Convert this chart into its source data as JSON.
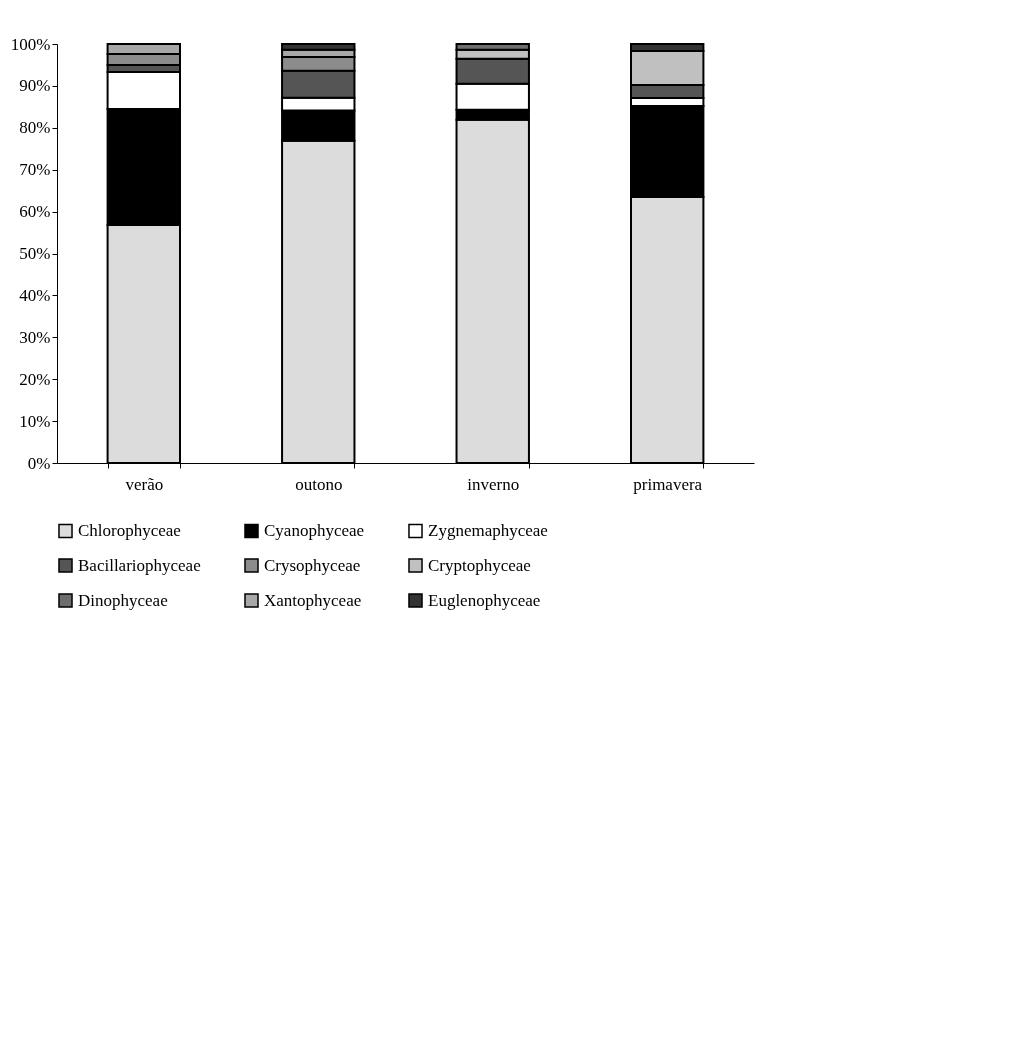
{
  "chart_data": {
    "type": "bar",
    "stacked": true,
    "legend": "bottom",
    "categories": [
      "verão",
      "outono",
      "inverno",
      "primavera"
    ],
    "ylim": [
      0,
      100
    ],
    "yticks": [
      {
        "value": 0,
        "label": "0%"
      },
      {
        "value": 10,
        "label": "10%"
      },
      {
        "value": 20,
        "label": "20%"
      },
      {
        "value": 30,
        "label": "30%"
      },
      {
        "value": 40,
        "label": "40%"
      },
      {
        "value": 50,
        "label": "50%"
      },
      {
        "value": 60,
        "label": "60%"
      },
      {
        "value": 70,
        "label": "70%"
      },
      {
        "value": 80,
        "label": "80%"
      },
      {
        "value": 90,
        "label": "90%"
      },
      {
        "value": 100,
        "label": "100%"
      }
    ],
    "series": [
      {
        "name": "Chlorophyceae",
        "color": "#dcdcdc",
        "values": [
          56.8,
          76.9,
          81.9,
          63.5
        ]
      },
      {
        "name": "Cyanophyceae",
        "color": "#000000",
        "values": [
          27.7,
          7.2,
          2.4,
          21.7
        ]
      },
      {
        "name": "Zygnemaphyceae",
        "color": "#ffffff",
        "values": [
          8.8,
          3.1,
          6.2,
          1.9
        ]
      },
      {
        "name": "Bacillariophyceae",
        "color": "#555555",
        "values": [
          1.7,
          6.4,
          6.0,
          3.1
        ]
      },
      {
        "name": "Crysophyceae",
        "color": "#8c8c8c",
        "values": [
          2.6,
          3.3,
          null,
          null
        ]
      },
      {
        "name": "Cryptophyceae",
        "color": "#c0c0c0",
        "values": [
          null,
          null,
          2.1,
          8.1
        ]
      },
      {
        "name": "Dinophyceae",
        "color": "#6e6e6e",
        "values": [
          null,
          null,
          1.4,
          null
        ]
      },
      {
        "name": "Xantophyceae",
        "color": "#a8a8a8",
        "values": [
          2.4,
          1.7,
          null,
          null
        ]
      },
      {
        "name": "Euglenophyceae",
        "color": "#333333",
        "values": [
          null,
          1.4,
          null,
          1.7
        ]
      }
    ]
  }
}
